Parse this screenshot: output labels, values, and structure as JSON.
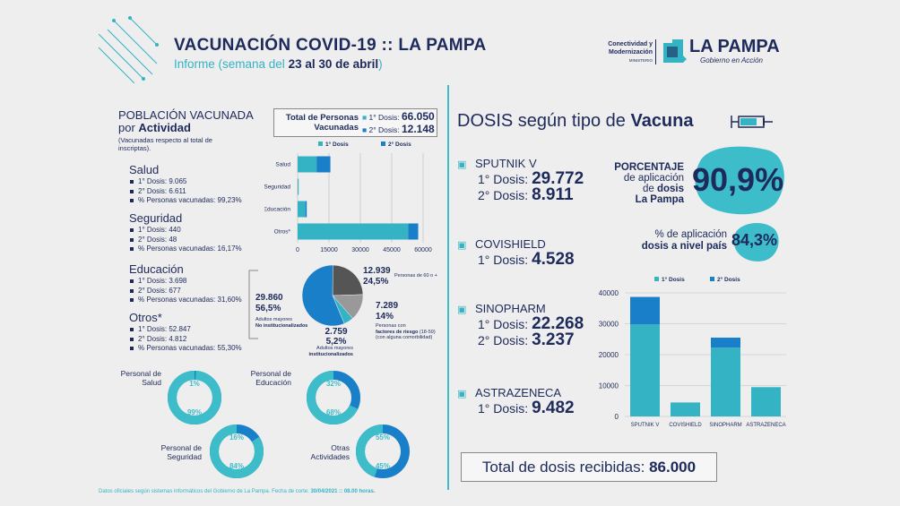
{
  "header": {
    "title": "VACUNACIÓN COVID-19 :: LA PAMPA",
    "subtitle_prefix": "Informe (semana del ",
    "subtitle_bold": "23 al 30 de abril",
    "subtitle_suffix": ")",
    "ministry_line1": "Conectividad y",
    "ministry_line2": "Modernización",
    "ministry_line3": "MINISTERIO",
    "brand": "LA PAMPA",
    "brand_tagline": "Gobierno en Acción"
  },
  "left": {
    "section_title_line1": "POBLACIÓN VACUNADA",
    "section_title_line2_prefix": "por ",
    "section_title_line2_bold": "Actividad",
    "section_note": "(Vacunadas respecto al total de inscriptas).",
    "totals": {
      "label": "Total de Personas Vacunadas",
      "label_line1": "Total de Personas",
      "label_line2": "Vacunadas",
      "dose1_label": "1° Dosis:",
      "dose1_value": "66.050",
      "dose2_label": "2° Dosis:",
      "dose2_value": "12.148"
    },
    "activities": [
      {
        "name": "Salud",
        "d1": "1° Dosis: 9.065",
        "d2": "2° Dosis: 6.611",
        "pct": "% Personas vacunadas: 99,23%"
      },
      {
        "name": "Seguridad",
        "d1": "1° Dosis: 440",
        "d2": "2° Dosis: 48",
        "pct": "% Personas vacunadas: 16,17%"
      },
      {
        "name": "Educación",
        "d1": "1° Dosis: 3.698",
        "d2": "2° Dosis: 677",
        "pct": "% Personas vacunadas: 31,60%"
      },
      {
        "name": "Otros*",
        "d1": "1° Dosis: 52.847",
        "d2": "2° Dosis: 4.812",
        "pct": "% Personas vacunadas: 55,30%"
      }
    ],
    "pie": {
      "slices": [
        {
          "value_label": "12.939",
          "pct_label": "24,5%",
          "pct": 24.5,
          "desc": "Personas de 60 o +",
          "color": "#555555"
        },
        {
          "value_label": "7.289",
          "pct_label": "14%",
          "pct": 14,
          "desc_bold": "factores de riesgo",
          "desc_prefix": "Personas con",
          "desc_suffix": "(18-59)",
          "desc_extra": "(con alguna comorbilidad)",
          "color": "#999999"
        },
        {
          "value_label": "2.759",
          "pct_label": "5,2%",
          "pct": 5.2,
          "desc_line1": "Adultos mayores",
          "desc_line2": "institucionalizados",
          "color": "#34b3c5"
        },
        {
          "value_label": "29.860",
          "pct_label": "56,5%",
          "pct": 56.5,
          "desc_line1": "Adultos mayores",
          "desc_line2": "No institucionalizados",
          "color": "#1a7fc9"
        }
      ]
    },
    "donuts": [
      {
        "label_line1": "Personal de",
        "label_line2": "Salud",
        "dose2_pct": "1%",
        "dose1_pct": "99%",
        "fraction": 0.99
      },
      {
        "label_line1": "Personal de",
        "label_line2": "Educación",
        "dose2_pct": "32%",
        "dose1_pct": "68%",
        "fraction": 0.68
      },
      {
        "label_line1": "Personal de",
        "label_line2": "Seguridad",
        "dose2_pct": "16%",
        "dose1_pct": "84%",
        "fraction": 0.84
      },
      {
        "label_line1": "Otras",
        "label_line2": "Actividades",
        "dose2_pct": "55%",
        "dose1_pct": "45%",
        "fraction": 0.45
      }
    ],
    "footer_prefix": "Datos oficiales según sistemas informáticos del Gobierno de La Pampa. Fecha de corte: ",
    "footer_bold": "30/04/2021 :: 08.00 horas."
  },
  "right": {
    "title_prefix": "DOSIS según tipo de ",
    "title_bold": "Vacuna",
    "vaccines": [
      {
        "name": "SPUTNIK V",
        "d1_label": "1° Dosis: ",
        "d1": "29.772",
        "d2_label": "2° Dosis: ",
        "d2": "8.911"
      },
      {
        "name": "COVISHIELD",
        "d1_label": "1° Dosis: ",
        "d1": "4.528"
      },
      {
        "name": "SINOPHARM",
        "d1_label": "1° Dosis: ",
        "d1": "22.268",
        "d2_label": "2° Dosis: ",
        "d2": "3.237"
      },
      {
        "name": "ASTRAZENECA",
        "d1_label": "1° Dosis: ",
        "d1": "9.482"
      }
    ],
    "pct_local_line1": "PORCENTAJE",
    "pct_local_line2": "de aplicación",
    "pct_local_line3_prefix": "de ",
    "pct_local_line3_bold": "dosis",
    "pct_local_line4": "La Pampa",
    "pct_local_value": "90,9%",
    "pct_country_line1": "% de aplicación",
    "pct_country_line2": "dosis a nivel país",
    "pct_country_value": "84,3%",
    "total_label": "Total de dosis recibidas: ",
    "total_value": "86.000"
  },
  "chart_data": [
    {
      "type": "bar",
      "orientation": "horizontal",
      "stacked": true,
      "categories": [
        "Salud",
        "Seguridad",
        "Educación",
        "Otros*"
      ],
      "series": [
        {
          "name": "1° Dosis",
          "values": [
            9065,
            440,
            3698,
            52847
          ],
          "color": "#34b3c5"
        },
        {
          "name": "2° Dosis",
          "values": [
            6611,
            48,
            677,
            4812
          ],
          "color": "#1a7fc9"
        }
      ],
      "xticks": [
        "0",
        "15000",
        "30000",
        "45000",
        "60000"
      ],
      "xlim": [
        0,
        60000
      ],
      "grid": true,
      "legend": "top"
    },
    {
      "type": "bar",
      "stacked": true,
      "categories": [
        "SPUTNIK V",
        "COVISHIELD",
        "SINOPHARM",
        "ASTRAZENECA"
      ],
      "series": [
        {
          "name": "1° Dosis",
          "values": [
            29772,
            4528,
            22268,
            9482
          ],
          "color": "#34b3c5"
        },
        {
          "name": "2° Dosis",
          "values": [
            8911,
            0,
            3237,
            0
          ],
          "color": "#1a7fc9"
        }
      ],
      "yticks": [
        "0",
        "10000",
        "20000",
        "30000",
        "40000"
      ],
      "ylim": [
        0,
        40000
      ],
      "grid": true,
      "legend": "top"
    }
  ]
}
